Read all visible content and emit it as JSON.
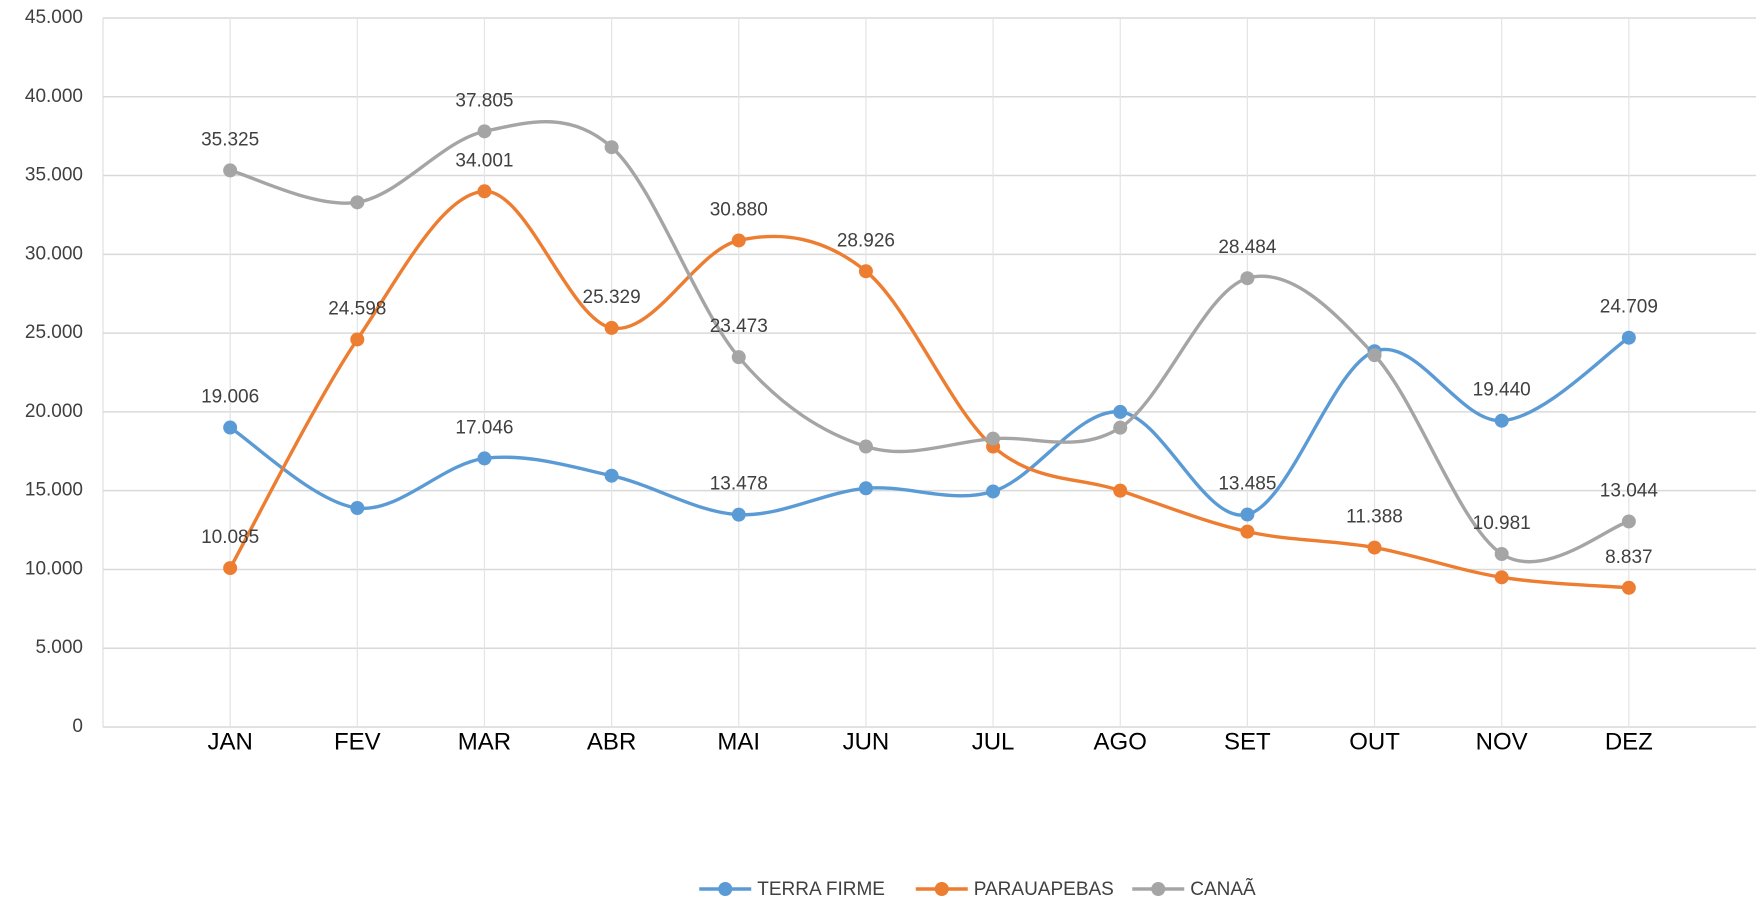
{
  "chart_data": {
    "type": "line",
    "categories": [
      "JAN",
      "FEV",
      "MAR",
      "ABR",
      "MAI",
      "JUN",
      "JUL",
      "AGO",
      "SET",
      "OUT",
      "NOV",
      "DEZ"
    ],
    "series": [
      {
        "name": "TERRA FIRME",
        "color": "#5b9bd5",
        "values": [
          19006,
          13900,
          17046,
          15950,
          13478,
          15150,
          14950,
          20000,
          13485,
          23850,
          19440,
          24709
        ],
        "value_labels": [
          "19.006",
          null,
          "17.046",
          null,
          "13.478",
          null,
          null,
          null,
          "13.485",
          null,
          "19.440",
          "24.709"
        ]
      },
      {
        "name": "PARAUAPEBAS",
        "color": "#ed7d31",
        "values": [
          10085,
          24598,
          34001,
          25329,
          30880,
          28926,
          17800,
          15000,
          12400,
          11388,
          9500,
          8837
        ],
        "value_labels": [
          "10.085",
          "24.598",
          "34.001",
          "25.329",
          "30.880",
          "28.926",
          null,
          null,
          null,
          "11.388",
          null,
          "8.837"
        ]
      },
      {
        "name": "CANAÃ",
        "color": "#a5a5a5",
        "values": [
          35325,
          33300,
          37805,
          36800,
          23473,
          17800,
          18300,
          19000,
          28484,
          23600,
          10981,
          13044
        ],
        "value_labels": [
          "35.325",
          null,
          "37.805",
          null,
          "23.473",
          null,
          null,
          null,
          "28.484",
          null,
          "10.981",
          "13.044"
        ]
      }
    ],
    "ylim": [
      0,
      45000
    ],
    "yticks": [
      0,
      {
        "value": 5000,
        "label": "5.000"
      },
      {
        "value": 10000,
        "label": "10.000"
      },
      {
        "value": 15000,
        "label": "15.000"
      },
      {
        "value": 20000,
        "label": "20.000"
      },
      {
        "value": 25000,
        "label": "25.000"
      },
      {
        "value": 30000,
        "label": "30.000"
      },
      {
        "value": 35000,
        "label": "35.000"
      },
      {
        "value": 40000,
        "label": "40.000"
      },
      {
        "value": 45000,
        "label": "45.000"
      }
    ],
    "grid": true,
    "smooth": true,
    "legend": "bottom"
  }
}
